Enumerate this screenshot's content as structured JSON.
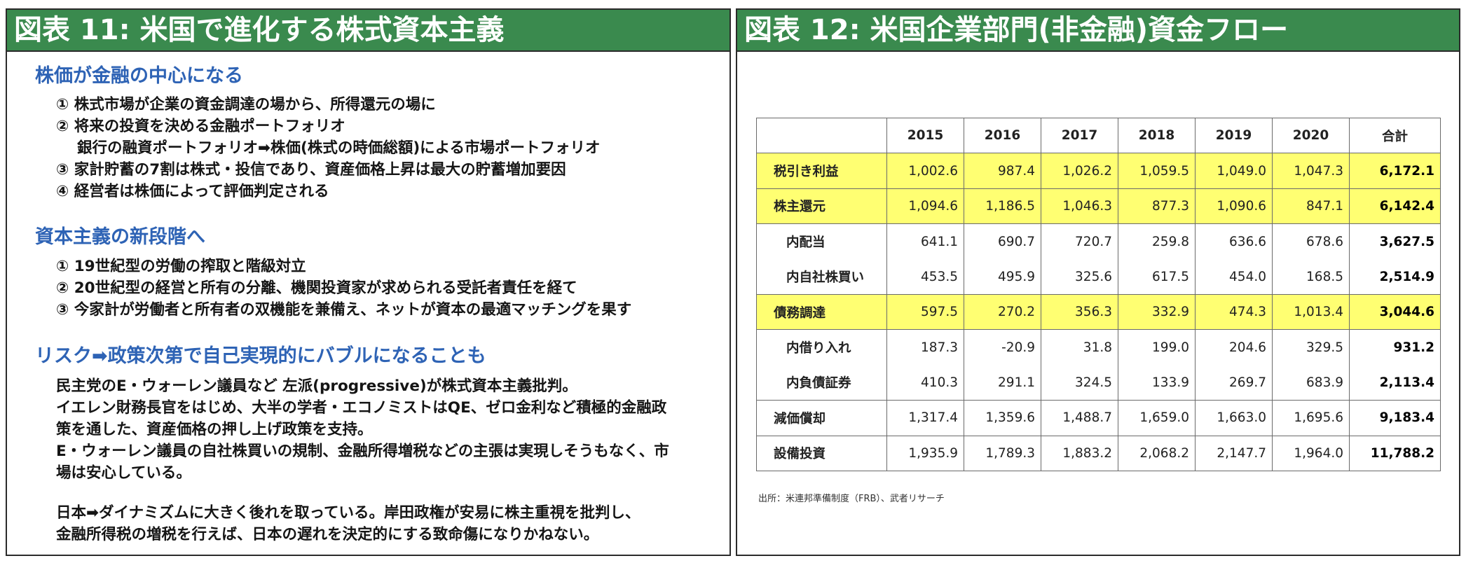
{
  "left_panel": {
    "title": "図表 11: 米国で進化する株式資本主義",
    "section1": {
      "title": "株価が金融の中心になる",
      "items": [
        "① 株式市場が企業の資金調達の場から、所得還元の場に",
        "② 将来の投資を決める金融ポートフォリオ",
        "銀行の融資ポートフォリオ➡株価(株式の時価総額)による市場ポートフォリオ",
        "③ 家計貯蓄の7割は株式・投信であり、資産価格上昇は最大の貯蓄増加要因",
        "④ 経営者は株価によって評価判定される"
      ]
    },
    "section2": {
      "title": "資本主義の新段階へ",
      "items": [
        "① 19世紀型の労働の搾取と階級対立",
        "② 20世紀型の経営と所有の分離、機関投資家が求められる受託者責任を経て",
        "③ 今家計が労働者と所有者の双機能を兼備え、ネットが資本の最適マッチングを果す"
      ]
    },
    "section3": {
      "title": "リスク➡政策次第で自己実現的にバブルになることも",
      "para1": [
        "民主党のE・ウォーレン議員など 左派(progressive)が株式資本主義批判。",
        "イエレン財務長官をはじめ、大半の学者・エコノミストはQE、ゼロ金利など積極的金融政",
        "策を通した、資産価格の押し上げ政策を支持。",
        "E・ウォーレン議員の自社株買いの規制、金融所得増税などの主張は実現しそうもなく、市",
        "場は安心している。"
      ],
      "para2": [
        "日本➡ダイナミズムに大きく後れを取っている。岸田政権が安易に株主重視を批判し、",
        "金融所得税の増税を行えば、日本の遅れを決定的にする致命傷になりかねない。"
      ]
    }
  },
  "right_panel": {
    "title": "図表 12: 米国企業部門(非金融)資金フロー",
    "chart_data": {
      "type": "table",
      "columns": [
        "",
        "2015",
        "2016",
        "2017",
        "2018",
        "2019",
        "2020",
        "合計"
      ],
      "rows": [
        {
          "label": "税引き利益",
          "values": [
            "1,002.6",
            "987.4",
            "1,026.2",
            "1,059.5",
            "1,049.0",
            "1,047.3"
          ],
          "total": "6,172.1",
          "highlight": true,
          "sub": false
        },
        {
          "label": "株主還元",
          "values": [
            "1,094.6",
            "1,186.5",
            "1,046.3",
            "877.3",
            "1,090.6",
            "847.1"
          ],
          "total": "6,142.4",
          "highlight": true,
          "sub": false
        },
        {
          "label": "内配当",
          "values": [
            "641.1",
            "690.7",
            "720.7",
            "259.8",
            "636.6",
            "678.6"
          ],
          "total": "3,627.5",
          "highlight": false,
          "sub": true
        },
        {
          "label": "内自社株買い",
          "values": [
            "453.5",
            "495.9",
            "325.6",
            "617.5",
            "454.0",
            "168.5"
          ],
          "total": "2,514.9",
          "highlight": false,
          "sub": true
        },
        {
          "label": "債務調達",
          "values": [
            "597.5",
            "270.2",
            "356.3",
            "332.9",
            "474.3",
            "1,013.4"
          ],
          "total": "3,044.6",
          "highlight": true,
          "sub": false
        },
        {
          "label": "内借り入れ",
          "values": [
            "187.3",
            "-20.9",
            "31.8",
            "199.0",
            "204.6",
            "329.5"
          ],
          "total": "931.2",
          "highlight": false,
          "sub": true
        },
        {
          "label": "内負債証券",
          "values": [
            "410.3",
            "291.1",
            "324.5",
            "133.9",
            "269.7",
            "683.9"
          ],
          "total": "2,113.4",
          "highlight": false,
          "sub": true
        },
        {
          "label": "減価償却",
          "values": [
            "1,317.4",
            "1,359.6",
            "1,488.7",
            "1,659.0",
            "1,663.0",
            "1,695.6"
          ],
          "total": "9,183.4",
          "highlight": false,
          "sub": false
        },
        {
          "label": "設備投資",
          "values": [
            "1,935.9",
            "1,789.3",
            "1,883.2",
            "2,068.2",
            "2,147.7",
            "1,964.0"
          ],
          "total": "11,788.2",
          "highlight": false,
          "sub": false
        }
      ],
      "highlight_color": "#ffff72"
    },
    "source": "出所：米連邦準備制度（FRB）、武者リサーチ"
  },
  "colors": {
    "header_green": "#3a8a4e",
    "section_blue": "#2e63b5"
  }
}
